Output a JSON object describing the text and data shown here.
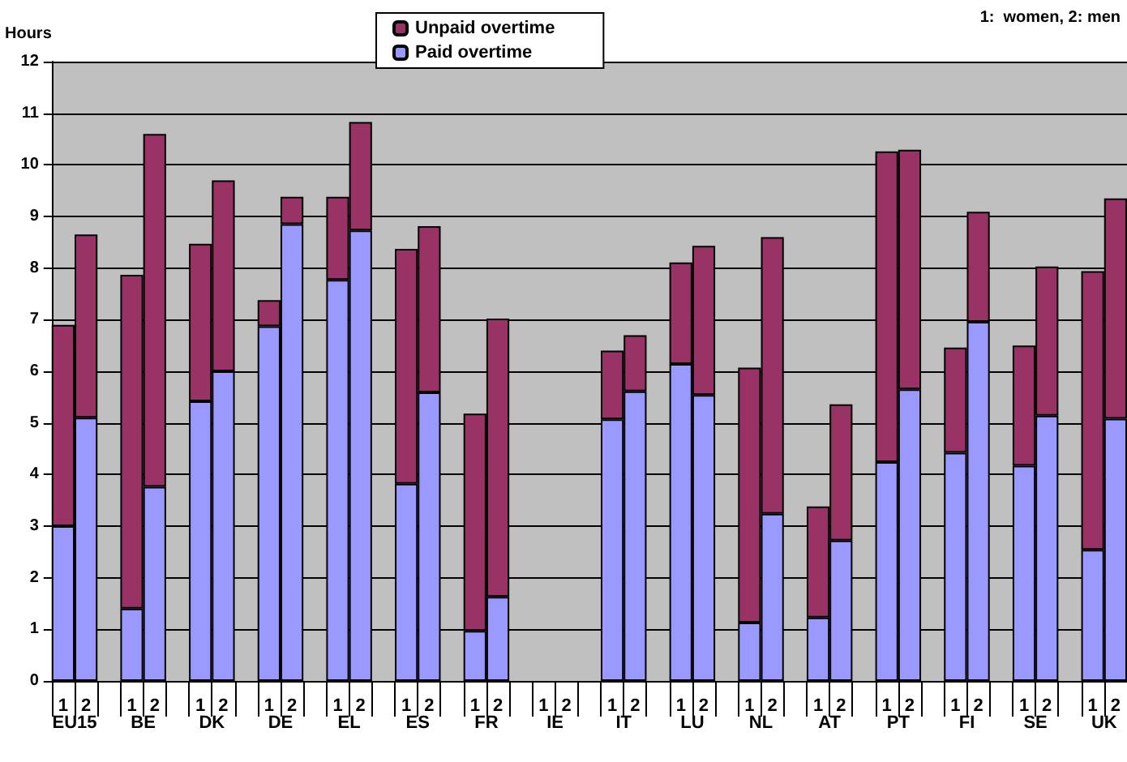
{
  "chart_data": {
    "type": "bar",
    "stacked": true,
    "ylabel": "Hours",
    "annotations": [
      "1:  women, 2: men",
      "EU15",
      "BE",
      "DK",
      "DE",
      "EL",
      "ES",
      "FR",
      "IE",
      "IT",
      "LU",
      "NL",
      "AT",
      "PT",
      "FI",
      "SE",
      "UK"
    ],
    "categories": [
      "1",
      "2",
      null,
      "1",
      "2",
      null,
      "1",
      "2",
      null,
      "1",
      "2",
      null,
      "1",
      "2",
      null,
      "1",
      "2",
      null,
      "1",
      "2",
      null,
      "1",
      "2",
      null,
      "1",
      "2",
      null,
      "1",
      "2",
      null,
      "1",
      "2",
      null,
      "1",
      "2",
      null,
      "1",
      "2",
      null,
      "1",
      "2",
      null,
      "1",
      "2",
      null,
      "1",
      "2"
    ],
    "series": [
      {
        "name": "Paid overtime",
        "color": "#9999ff",
        "values": [
          3.0,
          5.1,
          null,
          1.4,
          3.76,
          null,
          5.42,
          6.0,
          null,
          6.87,
          8.85,
          null,
          7.77,
          8.73,
          null,
          3.82,
          5.59,
          null,
          0.97,
          1.63,
          null,
          null,
          null,
          null,
          5.07,
          5.61,
          null,
          6.14,
          5.54,
          null,
          1.13,
          3.24,
          null,
          1.23,
          2.72,
          null,
          4.24,
          5.65,
          null,
          4.42,
          6.96,
          null,
          4.17,
          5.14,
          null,
          2.54,
          5.08
        ]
      },
      {
        "name": "Unpaid overtime",
        "color": "#993366",
        "values": [
          3.9,
          3.55,
          null,
          6.47,
          6.84,
          null,
          3.05,
          3.7,
          null,
          0.51,
          0.53,
          null,
          1.61,
          2.1,
          null,
          4.55,
          3.22,
          null,
          4.21,
          5.39,
          null,
          null,
          null,
          null,
          1.33,
          1.09,
          null,
          1.97,
          2.89,
          null,
          4.94,
          5.36,
          null,
          2.15,
          2.64,
          null,
          6.02,
          4.64,
          null,
          2.04,
          2.13,
          null,
          2.33,
          2.89,
          null,
          5.4,
          4.27
        ]
      }
    ],
    "ylim": [
      0,
      12
    ],
    "yticks": [
      0,
      1,
      2,
      3,
      4,
      5,
      6,
      7,
      8,
      9,
      10,
      11,
      12
    ],
    "grid": "y",
    "legend": "top"
  }
}
